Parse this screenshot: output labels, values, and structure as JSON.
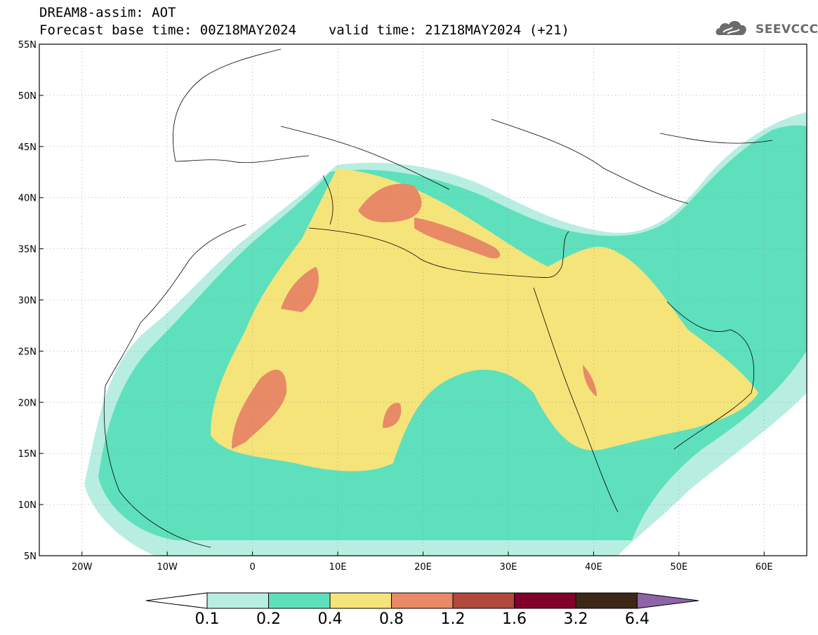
{
  "header": {
    "line1": "DREAM8-assim: AOT",
    "line2_base": "Forecast base time: 00Z18MAY2024",
    "line2_valid": "valid time: 21Z18MAY2024 (+21)"
  },
  "logo": {
    "text": "SEEVCCC",
    "icon": "cloud-icon"
  },
  "map": {
    "projection": "lat-lon",
    "lon_range": [
      -25,
      65
    ],
    "lat_range": [
      5,
      55
    ],
    "grid": true,
    "lat_ticks": [
      {
        "value": 55,
        "label": "55N"
      },
      {
        "value": 50,
        "label": "50N"
      },
      {
        "value": 45,
        "label": "45N"
      },
      {
        "value": 40,
        "label": "40N"
      },
      {
        "value": 35,
        "label": "35N"
      },
      {
        "value": 30,
        "label": "30N"
      },
      {
        "value": 25,
        "label": "25N"
      },
      {
        "value": 20,
        "label": "20N"
      },
      {
        "value": 15,
        "label": "15N"
      },
      {
        "value": 10,
        "label": "10N"
      },
      {
        "value": 5,
        "label": "5N"
      }
    ],
    "lon_ticks": [
      {
        "value": -20,
        "label": "20W"
      },
      {
        "value": -10,
        "label": "10W"
      },
      {
        "value": 0,
        "label": "0"
      },
      {
        "value": 10,
        "label": "10E"
      },
      {
        "value": 20,
        "label": "20E"
      },
      {
        "value": 30,
        "label": "30E"
      },
      {
        "value": 40,
        "label": "40E"
      },
      {
        "value": 50,
        "label": "50E"
      },
      {
        "value": 60,
        "label": "60E"
      }
    ]
  },
  "colorbar": {
    "levels": [
      "0.1",
      "0.2",
      "0.4",
      "0.8",
      "1.2",
      "1.6",
      "3.2",
      "6.4"
    ],
    "colors": {
      "below": "#ffffff",
      "c1": "#b8eee2",
      "c2": "#5ee0bd",
      "c3": "#f5e47a",
      "c4": "#e88a66",
      "c5": "#b04a3c",
      "c6": "#80002a",
      "c7": "#3d2818",
      "above": "#8e64a8"
    }
  }
}
